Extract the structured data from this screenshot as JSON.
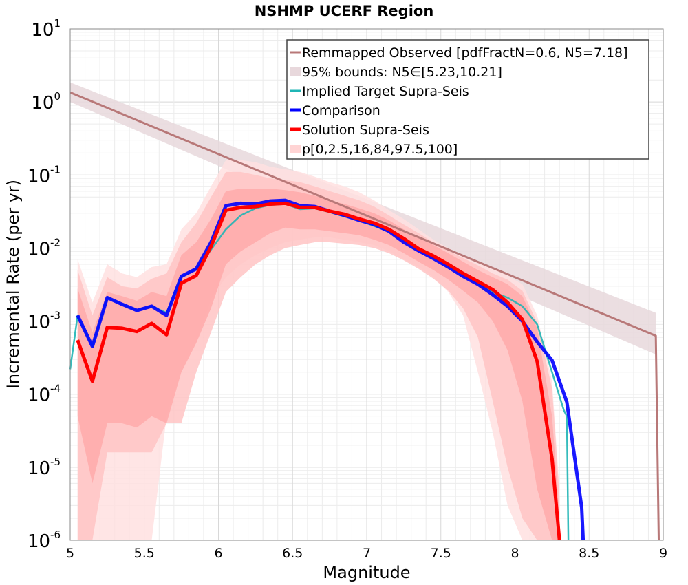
{
  "chart_data": {
    "type": "line",
    "title": "NSHMP UCERF Region",
    "xlabel": "Magnitude",
    "ylabel": "Incremental Rate (per yr)",
    "xlim": [
      5,
      9
    ],
    "ylim_exponents": [
      -6,
      1
    ],
    "y_scale": "log",
    "grid": true,
    "legend_position": "top-right",
    "x_ticks": [
      "5",
      "5.5",
      "6",
      "6.5",
      "7",
      "7.5",
      "8",
      "8.5",
      "9"
    ],
    "y_ticks": [
      {
        "base": "10",
        "exp": "-6"
      },
      {
        "base": "10",
        "exp": "-5"
      },
      {
        "base": "10",
        "exp": "-4"
      },
      {
        "base": "10",
        "exp": "-3"
      },
      {
        "base": "10",
        "exp": "-2"
      },
      {
        "base": "10",
        "exp": "-1"
      },
      {
        "base": "10",
        "exp": "0"
      },
      {
        "base": "10",
        "exp": "1"
      }
    ],
    "legend": [
      {
        "label": "Remmapped Observed [pdfFractN=0.6, N5=7.18]",
        "kind": "line",
        "color": "#b87878"
      },
      {
        "label": "95% bounds: N5∈[5.23,10.21]",
        "kind": "band",
        "color": "#e8d8dc"
      },
      {
        "label": "Implied Target Supra-Seis",
        "kind": "line",
        "color": "#1fb5b5"
      },
      {
        "label": "Comparison",
        "kind": "line",
        "color": "#0000ff"
      },
      {
        "label": "Solution Supra-Seis",
        "kind": "line",
        "color": "#ff0000"
      },
      {
        "label": "p[0,2.5,16,84,97.5,100]",
        "kind": "band",
        "color": "#ffd4d4"
      }
    ],
    "series": [
      {
        "name": "Remmapped Observed [pdfFractN=0.6, N5=7.18]",
        "color": "#b87878",
        "x": [
          5.0,
          8.95,
          8.97
        ],
        "y": [
          1.35,
          0.00063,
          1e-06
        ]
      },
      {
        "name": "Implied Target Supra-Seis",
        "color": "#1fb5b5",
        "x": [
          5.0,
          5.05,
          5.15,
          5.25,
          5.35,
          5.45,
          5.55,
          5.65,
          5.75,
          5.85,
          5.95,
          6.05,
          6.15,
          6.25,
          6.35,
          6.45,
          6.55,
          6.65,
          6.75,
          6.85,
          6.95,
          7.05,
          7.15,
          7.25,
          7.35,
          7.45,
          7.55,
          7.65,
          7.75,
          7.85,
          7.95,
          8.05,
          8.15,
          8.25,
          8.33,
          8.35,
          8.36
        ],
        "y": [
          0.00022,
          0.0012,
          0.00045,
          0.0021,
          0.0017,
          0.0014,
          0.0016,
          0.0013,
          0.004,
          0.0052,
          0.0095,
          0.018,
          0.028,
          0.035,
          0.039,
          0.04,
          0.034,
          0.035,
          0.031,
          0.027,
          0.024,
          0.02,
          0.017,
          0.013,
          0.0095,
          0.0075,
          0.0057,
          0.0043,
          0.0033,
          0.0025,
          0.0021,
          0.0016,
          0.0009,
          0.0002,
          6e-05,
          5e-05,
          1e-06
        ]
      },
      {
        "name": "Comparison",
        "color": "#0000ff",
        "x": [
          5.05,
          5.15,
          5.25,
          5.35,
          5.45,
          5.55,
          5.65,
          5.75,
          5.85,
          5.95,
          6.05,
          6.15,
          6.25,
          6.35,
          6.45,
          6.55,
          6.65,
          6.75,
          6.85,
          6.95,
          7.05,
          7.15,
          7.25,
          7.35,
          7.45,
          7.55,
          7.65,
          7.75,
          7.85,
          7.95,
          8.05,
          8.15,
          8.25,
          8.35,
          8.45,
          8.46
        ],
        "y": [
          0.0012,
          0.00045,
          0.0021,
          0.0017,
          0.0014,
          0.0016,
          0.0012,
          0.0041,
          0.0052,
          0.012,
          0.038,
          0.041,
          0.04,
          0.044,
          0.045,
          0.038,
          0.037,
          0.032,
          0.028,
          0.024,
          0.021,
          0.017,
          0.012,
          0.0092,
          0.0072,
          0.0055,
          0.0041,
          0.0032,
          0.0023,
          0.0016,
          0.001,
          0.00052,
          0.00029,
          7.8e-05,
          2.8e-06,
          1e-06
        ]
      },
      {
        "name": "Solution Supra-Seis",
        "color": "#ff0000",
        "x": [
          5.05,
          5.15,
          5.25,
          5.35,
          5.45,
          5.55,
          5.65,
          5.75,
          5.85,
          5.95,
          6.05,
          6.15,
          6.25,
          6.35,
          6.45,
          6.55,
          6.65,
          6.75,
          6.85,
          6.95,
          7.05,
          7.15,
          7.25,
          7.35,
          7.45,
          7.55,
          7.65,
          7.75,
          7.85,
          7.95,
          8.05,
          8.15,
          8.25,
          8.3
        ],
        "y": [
          0.00055,
          0.00015,
          0.00082,
          0.0008,
          0.00072,
          0.00093,
          0.00065,
          0.0033,
          0.0042,
          0.0105,
          0.033,
          0.036,
          0.037,
          0.04,
          0.041,
          0.036,
          0.036,
          0.032,
          0.029,
          0.025,
          0.022,
          0.018,
          0.0135,
          0.0098,
          0.0078,
          0.006,
          0.0045,
          0.0035,
          0.0027,
          0.0018,
          0.00105,
          0.00028,
          1.3e-05,
          1e-06
        ]
      }
    ],
    "bands": [
      {
        "name": "95% bounds: N5∈[5.23,10.21]",
        "color": "#e8d8dc",
        "x": [
          5.0,
          8.95
        ],
        "y_low": [
          1.0,
          0.00035
        ],
        "y_high": [
          1.85,
          0.0013
        ]
      },
      {
        "name": "p[0,2.5,16,84,97.5,100] outer (0-100)",
        "color": "#ffe0e0",
        "x": [
          5.05,
          5.15,
          5.25,
          5.35,
          5.45,
          5.55,
          5.65,
          5.75,
          5.85,
          5.95,
          6.05,
          6.15,
          6.25,
          6.35,
          6.45,
          6.55,
          6.65,
          6.75,
          6.85,
          6.95,
          7.05,
          7.15,
          7.25,
          7.35,
          7.45,
          7.55,
          7.65,
          7.75,
          7.85,
          7.95,
          8.05,
          8.15,
          8.25,
          8.3
        ],
        "y_low": [
          1e-06,
          1e-06,
          1e-06,
          1e-06,
          1e-06,
          1e-06,
          5e-05,
          0.0002,
          0.0005,
          0.002,
          0.004,
          0.006,
          0.008,
          0.01,
          0.012,
          0.013,
          0.014,
          0.014,
          0.013,
          0.012,
          0.011,
          0.009,
          0.007,
          0.0055,
          0.004,
          0.0025,
          0.0012,
          0.0002,
          3e-05,
          3e-06,
          1e-06,
          1e-06,
          1e-06,
          1e-06
        ],
        "y_high": [
          0.007,
          0.0018,
          0.006,
          0.0045,
          0.004,
          0.0055,
          0.006,
          0.018,
          0.03,
          0.07,
          0.16,
          0.16,
          0.15,
          0.13,
          0.12,
          0.11,
          0.095,
          0.08,
          0.07,
          0.058,
          0.045,
          0.033,
          0.025,
          0.018,
          0.013,
          0.01,
          0.008,
          0.0065,
          0.0052,
          0.0042,
          0.0032,
          0.0012,
          0.00015,
          5e-06
        ]
      },
      {
        "name": "p[0,2.5,16,84,97.5,100] 2.5-97.5",
        "color": "#ffc4c4",
        "x": [
          5.05,
          5.15,
          5.25,
          5.35,
          5.45,
          5.55,
          5.65,
          5.75,
          5.85,
          5.95,
          6.05,
          6.15,
          6.25,
          6.35,
          6.45,
          6.55,
          6.65,
          6.75,
          6.85,
          6.95,
          7.05,
          7.15,
          7.25,
          7.35,
          7.45,
          7.55,
          7.65,
          7.75,
          7.85,
          7.95,
          8.05,
          8.15,
          8.25,
          8.3
        ],
        "y_low": [
          1e-06,
          1e-06,
          1.6e-05,
          1.6e-05,
          1.6e-05,
          1.6e-05,
          4e-05,
          4e-05,
          0.0002,
          0.0007,
          0.0025,
          0.004,
          0.006,
          0.008,
          0.01,
          0.011,
          0.012,
          0.012,
          0.0115,
          0.011,
          0.01,
          0.0085,
          0.0068,
          0.0052,
          0.0038,
          0.0026,
          0.0015,
          0.0006,
          8e-05,
          1e-05,
          2e-06,
          1e-06,
          1e-06,
          1e-06
        ],
        "y_high": [
          0.005,
          0.0012,
          0.004,
          0.003,
          0.0028,
          0.0038,
          0.0045,
          0.012,
          0.022,
          0.05,
          0.11,
          0.11,
          0.1,
          0.09,
          0.085,
          0.08,
          0.07,
          0.06,
          0.052,
          0.045,
          0.037,
          0.028,
          0.021,
          0.016,
          0.012,
          0.0092,
          0.0073,
          0.0058,
          0.0045,
          0.0037,
          0.0026,
          0.00095,
          0.00012,
          4e-06
        ]
      },
      {
        "name": "p[0,2.5,16,84,97.5,100] 16-84",
        "color": "#ffaaaa",
        "x": [
          5.05,
          5.15,
          5.25,
          5.35,
          5.45,
          5.55,
          5.65,
          5.75,
          5.85,
          5.95,
          6.05,
          6.15,
          6.25,
          6.35,
          6.45,
          6.55,
          6.65,
          6.75,
          6.85,
          6.95,
          7.05,
          7.15,
          7.25,
          7.35,
          7.45,
          7.55,
          7.65,
          7.75,
          7.85,
          7.95,
          8.05,
          8.15,
          8.25,
          8.3
        ],
        "y_low": [
          5e-05,
          6e-06,
          4e-05,
          4e-05,
          3.5e-05,
          5e-05,
          4e-05,
          0.0002,
          0.0005,
          0.0015,
          0.006,
          0.009,
          0.012,
          0.016,
          0.019,
          0.018,
          0.018,
          0.017,
          0.016,
          0.015,
          0.013,
          0.011,
          0.0085,
          0.0065,
          0.005,
          0.0037,
          0.0026,
          0.0018,
          0.001,
          0.0004,
          8e-05,
          5e-06,
          1e-06,
          1e-06
        ],
        "y_high": [
          0.0028,
          0.0007,
          0.0025,
          0.0022,
          0.0019,
          0.0025,
          0.0022,
          0.008,
          0.012,
          0.025,
          0.06,
          0.065,
          0.065,
          0.065,
          0.062,
          0.058,
          0.052,
          0.045,
          0.04,
          0.035,
          0.03,
          0.024,
          0.018,
          0.014,
          0.011,
          0.0085,
          0.0065,
          0.005,
          0.004,
          0.0032,
          0.0022,
          0.0008,
          5e-05,
          2e-06
        ]
      }
    ]
  }
}
